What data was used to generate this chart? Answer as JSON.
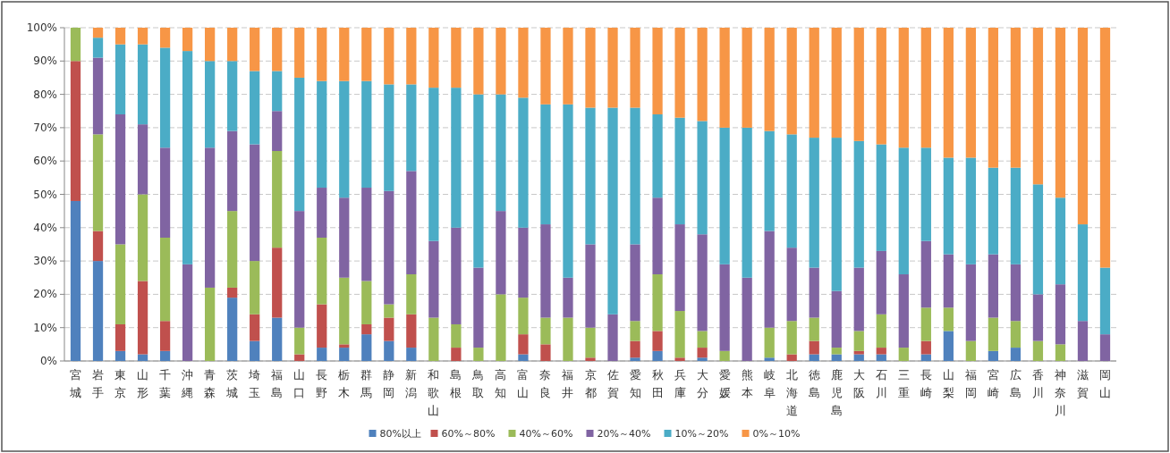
{
  "chart_data": {
    "type": "bar",
    "stacked": true,
    "grid": "y",
    "legend": "bottom",
    "categories": [
      "宮城",
      "岩手",
      "東京",
      "山形",
      "千葉",
      "沖縄",
      "青森",
      "茨城",
      "埼玉",
      "福島",
      "山口",
      "長野",
      "栃木",
      "群馬",
      "静岡",
      "新潟",
      "和歌山",
      "島根",
      "鳥取",
      "高知",
      "富山",
      "奈良",
      "福井",
      "京都",
      "佐賀",
      "愛知",
      "秋田",
      "兵庫",
      "大分",
      "愛媛",
      "熊本",
      "岐阜",
      "北海道",
      "徳島",
      "鹿児島",
      "大阪",
      "石川",
      "三重",
      "長崎",
      "山梨",
      "福岡",
      "宮崎",
      "広島",
      "香川",
      "神奈川",
      "滋賀",
      "岡山"
    ],
    "ylim": [
      0,
      100
    ],
    "yticks": [
      {
        "value": 0,
        "label": "0%"
      },
      {
        "value": 10,
        "label": "10%"
      },
      {
        "value": 20,
        "label": "20%"
      },
      {
        "value": 30,
        "label": "30%"
      },
      {
        "value": 40,
        "label": "40%"
      },
      {
        "value": 50,
        "label": "50%"
      },
      {
        "value": 60,
        "label": "60%"
      },
      {
        "value": 70,
        "label": "70%"
      },
      {
        "value": 80,
        "label": "80%"
      },
      {
        "value": 90,
        "label": "90%"
      },
      {
        "value": 100,
        "label": "100%"
      }
    ],
    "series": [
      {
        "name": "80%以上",
        "color": "#4f81bd",
        "values": [
          48,
          30,
          3,
          2,
          3,
          0,
          0,
          19,
          6,
          13,
          0,
          4,
          4,
          8,
          6,
          4,
          0,
          0,
          0,
          0,
          2,
          0,
          0,
          0,
          0,
          1,
          3,
          0,
          1,
          0,
          0,
          1,
          0,
          2,
          2,
          2,
          2,
          0,
          2,
          9,
          0,
          3,
          4,
          0,
          0,
          0,
          0
        ]
      },
      {
        "name": "60%～80%",
        "color": "#c0504d",
        "values": [
          42,
          9,
          8,
          22,
          9,
          0,
          0,
          3,
          8,
          21,
          2,
          13,
          1,
          3,
          7,
          10,
          0,
          4,
          0,
          0,
          6,
          5,
          0,
          1,
          0,
          5,
          6,
          1,
          3,
          0,
          0,
          0,
          2,
          4,
          0,
          1,
          2,
          0,
          4,
          0,
          0,
          0,
          0,
          0,
          0,
          0,
          0
        ]
      },
      {
        "name": "40%～60%",
        "color": "#9bbb59",
        "values": [
          10,
          29,
          24,
          26,
          25,
          0,
          22,
          23,
          16,
          29,
          8,
          20,
          20,
          13,
          4,
          12,
          13,
          7,
          4,
          20,
          11,
          8,
          13,
          9,
          0,
          6,
          17,
          14,
          5,
          3,
          0,
          9,
          10,
          7,
          2,
          6,
          10,
          4,
          10,
          7,
          6,
          10,
          8,
          6,
          5,
          0,
          0
        ]
      },
      {
        "name": "20%～40%",
        "color": "#8064a2",
        "values": [
          0,
          23,
          39,
          21,
          27,
          29,
          42,
          24,
          35,
          12,
          35,
          15,
          24,
          28,
          34,
          31,
          23,
          29,
          24,
          25,
          21,
          28,
          12,
          25,
          14,
          23,
          23,
          26,
          29,
          26,
          25,
          29,
          22,
          15,
          17,
          19,
          19,
          22,
          20,
          16,
          23,
          19,
          17,
          14,
          18,
          12,
          8
        ]
      },
      {
        "name": "10%～20%",
        "color": "#4bacc6",
        "values": [
          0,
          6,
          21,
          24,
          30,
          64,
          26,
          21,
          22,
          12,
          40,
          32,
          35,
          32,
          32,
          26,
          46,
          42,
          52,
          35,
          39,
          36,
          52,
          41,
          62,
          41,
          25,
          32,
          34,
          41,
          45,
          30,
          34,
          39,
          46,
          38,
          32,
          38,
          28,
          29,
          32,
          26,
          29,
          33,
          26,
          29,
          20
        ]
      },
      {
        "name": "0%～10%",
        "color": "#f79646",
        "values": [
          0,
          3,
          5,
          5,
          6,
          7,
          10,
          10,
          13,
          13,
          15,
          16,
          16,
          16,
          17,
          17,
          18,
          18,
          20,
          20,
          21,
          23,
          23,
          24,
          24,
          24,
          26,
          27,
          28,
          30,
          30,
          31,
          32,
          33,
          33,
          34,
          35,
          36,
          36,
          39,
          39,
          42,
          42,
          47,
          51,
          59,
          72
        ]
      }
    ]
  }
}
